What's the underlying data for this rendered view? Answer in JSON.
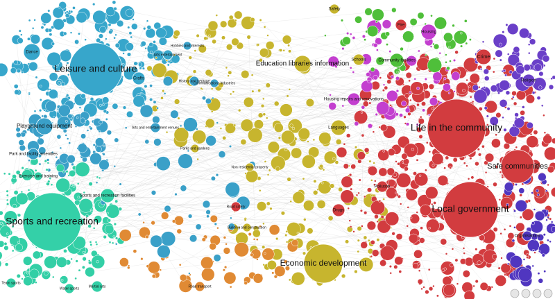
{
  "nodes": [
    {
      "label": "Leisure and culture"
    },
    {
      "label": "Sports and recreation"
    },
    {
      "label": "Life in the community"
    },
    {
      "label": "Local government"
    },
    {
      "label": "Safe communities"
    },
    {
      "label": "Economic development"
    },
    {
      "label": "Education libraries information"
    },
    {
      "label": "Playground equipment"
    },
    {
      "label": "Park and facility amenities"
    },
    {
      "label": "Exercise and training"
    },
    {
      "label": "Sports and recreation facilities"
    },
    {
      "label": "Dance"
    },
    {
      "label": "Crafts"
    },
    {
      "label": "Arts and entertainment venues"
    },
    {
      "label": "Parks and gardens"
    },
    {
      "label": "Housing repairs and renovations"
    },
    {
      "label": "Languages"
    },
    {
      "label": "Non residential property"
    },
    {
      "label": "Building and construction"
    },
    {
      "label": "Road transport"
    },
    {
      "label": "Road safety"
    },
    {
      "label": "Community facilities"
    },
    {
      "label": "Crime"
    },
    {
      "label": "Housing"
    },
    {
      "label": "Religion"
    },
    {
      "label": "Pollution"
    },
    {
      "label": "Drugs"
    },
    {
      "label": "Organisations"
    },
    {
      "label": "Communications industries"
    },
    {
      "label": "History and heritage"
    },
    {
      "label": "Fire"
    },
    {
      "label": "Schools"
    },
    {
      "label": "Hobbies and interests"
    },
    {
      "label": "Safety"
    },
    {
      "label": "Arts entertainment"
    },
    {
      "label": "Martial arts"
    },
    {
      "label": "Team sports"
    },
    {
      "label": "Water sports"
    }
  ]
}
